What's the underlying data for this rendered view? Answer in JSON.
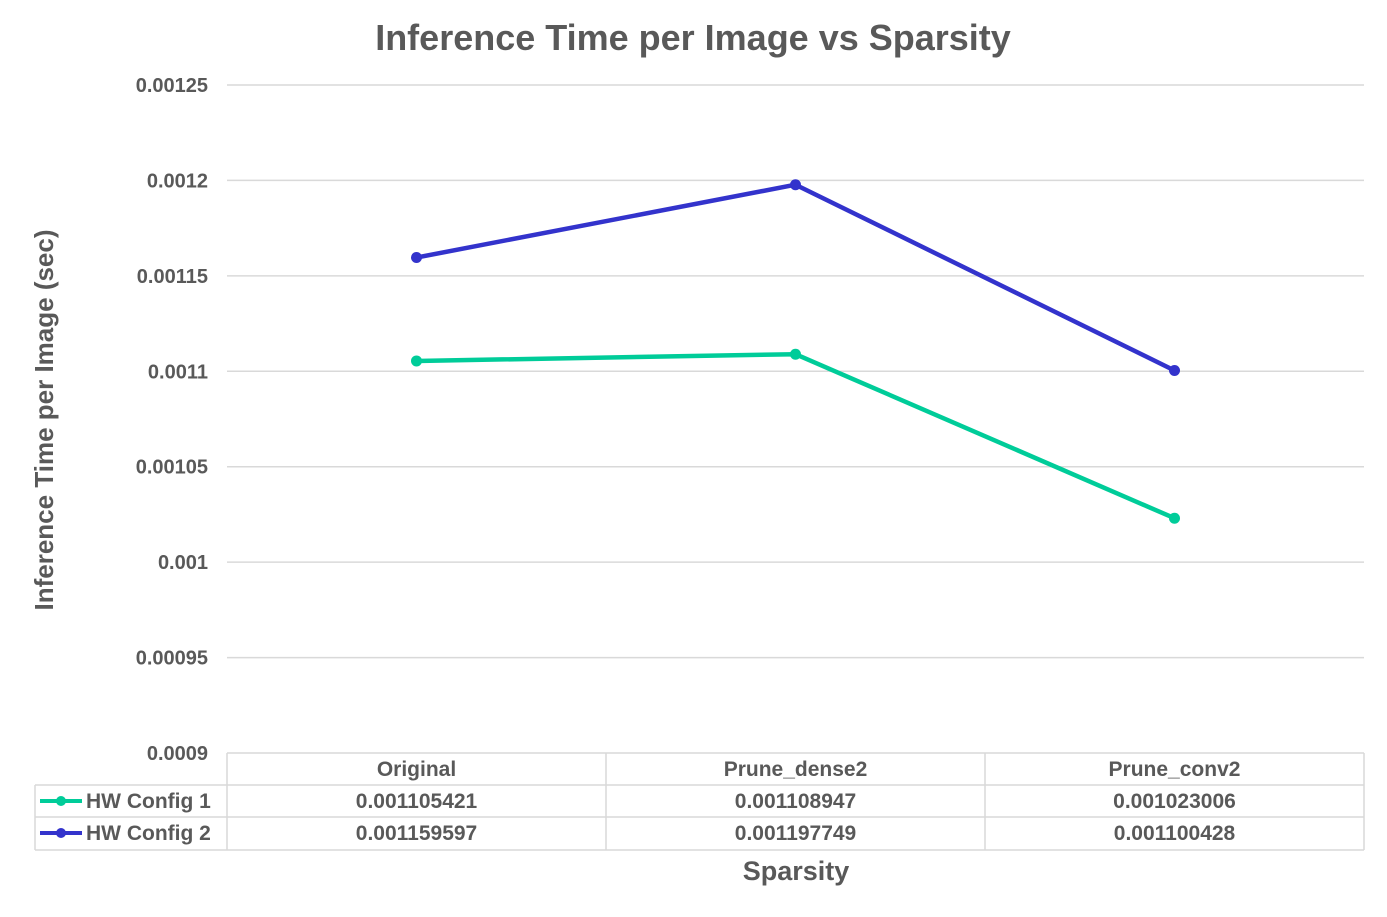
{
  "chart_data": {
    "type": "line",
    "title": "Inference Time per Image vs Sparsity",
    "xlabel": "Sparsity",
    "ylabel": "Inference Time per Image (sec)",
    "categories": [
      "Original",
      "Prune_dense2",
      "Prune_conv2"
    ],
    "ylim": [
      0.0009,
      0.00125
    ],
    "yticks": [
      "0.00125",
      "0.0012",
      "0.00115",
      "0.0011",
      "0.00105",
      "0.001",
      "0.00095",
      "0.0009"
    ],
    "ytick_values": [
      0.00125,
      0.0012,
      0.00115,
      0.0011,
      0.00105,
      0.001,
      0.00095,
      0.0009
    ],
    "grid": true,
    "legend": "data-table-bottom",
    "series": [
      {
        "name": "HW Config 1",
        "color": "#00cc99",
        "values": [
          0.001105421,
          0.001108947,
          0.001023006
        ],
        "labels": [
          "0.001105421",
          "0.001108947",
          "0.001023006"
        ]
      },
      {
        "name": "HW Config 2",
        "color": "#3333cc",
        "values": [
          0.001159597,
          0.001197749,
          0.001100428
        ],
        "labels": [
          "0.001159597",
          "0.001197749",
          "0.001100428"
        ]
      }
    ]
  }
}
